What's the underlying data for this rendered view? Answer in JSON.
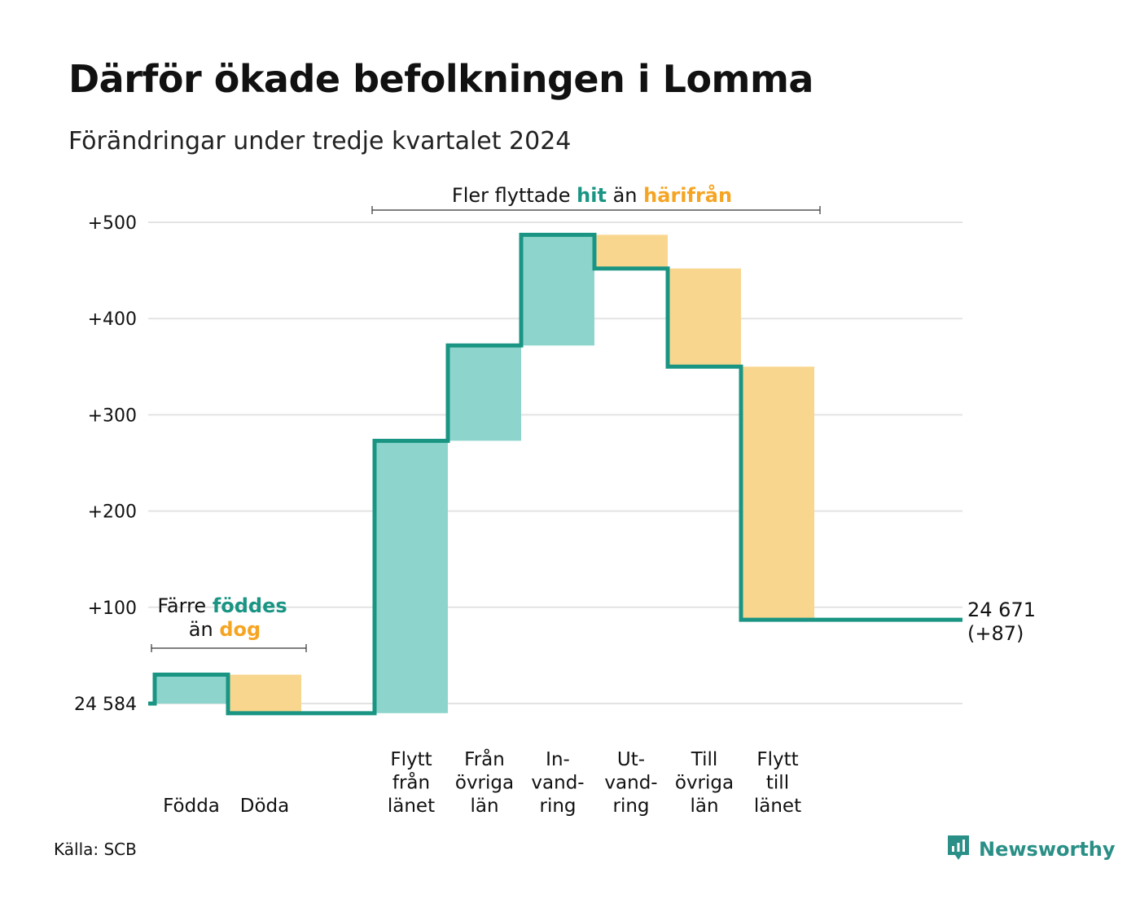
{
  "title": "Därför ökade befolkningen i Lomma",
  "subtitle": "Förändringar under tredje kvartalet 2024",
  "source": "Källa: SCB",
  "brand": "Newsworthy",
  "colors": {
    "increase": "#8dd5cc",
    "decrease": "#f9d68d",
    "line": "#1a9583",
    "teal_text": "#1a9583",
    "orange_text": "#f5a523",
    "grid": "#e3e3e3"
  },
  "annotations": {
    "births": {
      "line1_prefix": "Färre",
      "line1_highlight": "föddes",
      "line2_prefix": "än",
      "line2_highlight": "dog"
    },
    "migration": {
      "prefix": "Fler flyttade",
      "highlight1": "hit",
      "middle": "än",
      "highlight2": "härifrån"
    }
  },
  "end_label": {
    "total": "24 671",
    "change": "(+87)"
  },
  "chart_data": {
    "type": "waterfall",
    "baseline": 24584,
    "baseline_label": "24 584",
    "y_ticks": [
      {
        "value": 100,
        "label": "+100"
      },
      {
        "value": 200,
        "label": "+200"
      },
      {
        "value": 300,
        "label": "+300"
      },
      {
        "value": 400,
        "label": "+400"
      },
      {
        "value": 500,
        "label": "+500"
      }
    ],
    "ylim": [
      -20,
      520
    ],
    "steps": [
      {
        "id": "fodda",
        "label_lines": [
          "Födda"
        ],
        "change": 30,
        "kind": "increase"
      },
      {
        "id": "doda",
        "label_lines": [
          "Döda"
        ],
        "change": -40,
        "kind": "decrease"
      },
      {
        "id": "gap",
        "label_lines": [],
        "change": 0,
        "kind": "none"
      },
      {
        "id": "flytt-fran-lanet",
        "label_lines": [
          "Flytt",
          "från",
          "länet"
        ],
        "change": 283,
        "kind": "increase"
      },
      {
        "id": "fran-ovriga-lan",
        "label_lines": [
          "Från",
          "övriga",
          "län"
        ],
        "change": 99,
        "kind": "increase"
      },
      {
        "id": "invandring",
        "label_lines": [
          "In-",
          "vand-",
          "ring"
        ],
        "change": 115,
        "kind": "increase"
      },
      {
        "id": "utvandring",
        "label_lines": [
          "Ut-",
          "vand-",
          "ring"
        ],
        "change": -35,
        "kind": "decrease"
      },
      {
        "id": "till-ovriga-lan",
        "label_lines": [
          "Till",
          "övriga",
          "län"
        ],
        "change": -102,
        "kind": "decrease"
      },
      {
        "id": "flytt-till-lanet",
        "label_lines": [
          "Flytt",
          "till",
          "länet"
        ],
        "change": -263,
        "kind": "decrease"
      }
    ],
    "final_change": 87
  }
}
